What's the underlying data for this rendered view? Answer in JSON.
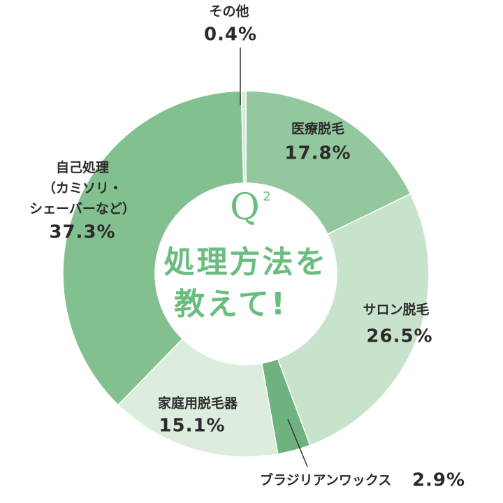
{
  "chart_data": {
    "type": "donut",
    "question": {
      "letter": "Q",
      "number": "2"
    },
    "title_lines": [
      "処理方法を",
      "教えて!"
    ],
    "categories": [
      "医療脱毛",
      "サロン脱毛",
      "ブラジリアンワックス",
      "家庭用脱毛器",
      "自己処理\n（カミソリ・\nシェーバーなど）",
      "その他"
    ],
    "values": [
      17.8,
      26.5,
      2.9,
      15.1,
      37.3,
      0.4
    ],
    "value_labels": [
      "17.8%",
      "26.5%",
      "2.9%",
      "15.1%",
      "37.3%",
      "0.4%"
    ],
    "colors": [
      "#93c79d",
      "#c8e3cb",
      "#6db27f",
      "#dcedde",
      "#82c08f",
      "#d3e9d5"
    ]
  }
}
